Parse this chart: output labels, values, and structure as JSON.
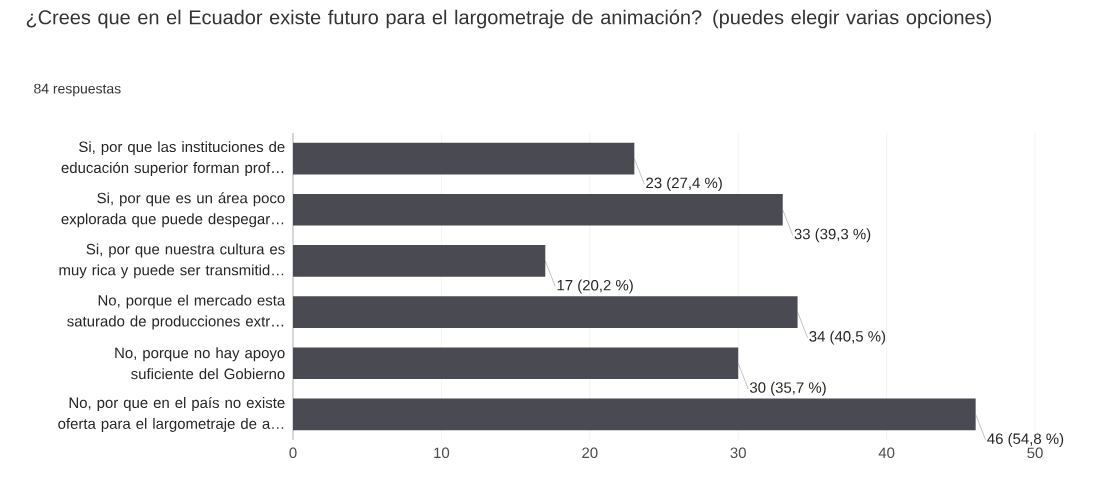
{
  "chart_data": {
    "type": "bar",
    "orientation": "horizontal",
    "title": "¿Crees que en el Ecuador existe futuro para el largometraje de animación? (puedes elegir varias opciones)",
    "subtitle": "84 respuestas",
    "categories": [
      "Si, por que las instituciones de educación superior forman prof…",
      "Si, por que es un área poco explorada que puede despegar…",
      "Si, por que nuestra cultura es muy rica y puede ser transmitid…",
      "No, porque el mercado esta saturado de producciones extr…",
      "No, porque no hay apoyo suficiente del Gobierno",
      "No, por que en el país no existe oferta para el largometraje de a…"
    ],
    "values": [
      23,
      33,
      17,
      34,
      30,
      46
    ],
    "value_labels": [
      "23 (27,4 %)",
      "33 (39,3 %)",
      "17 (20,2 %)",
      "34 (40,5 %)",
      "30 (35,7 %)",
      "46 (54,8 %)"
    ],
    "color": "#4a4b52",
    "xlim": [
      0,
      50
    ],
    "xticks": [
      0,
      10,
      20,
      30,
      40,
      50
    ],
    "grid": "x"
  }
}
